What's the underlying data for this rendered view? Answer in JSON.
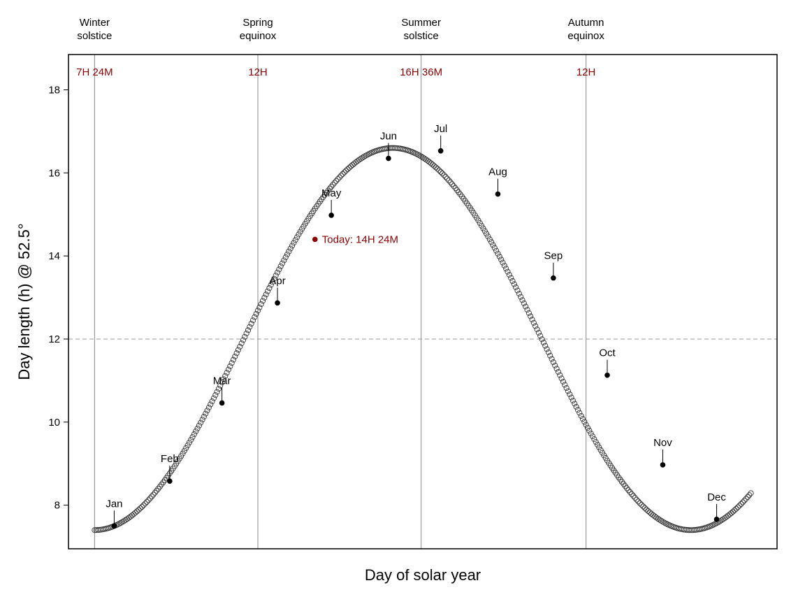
{
  "chart_data": {
    "type": "scatter",
    "title": "",
    "xlabel": "Day of solar year",
    "ylabel": "Day length (h)  @ 52.5°",
    "xlim": [
      -16,
      418
    ],
    "ylim": [
      6.95,
      18.85
    ],
    "yticks": [
      8,
      10,
      12,
      14,
      16,
      18
    ],
    "grid": false,
    "reference_line": {
      "y": 12,
      "style": "dashed"
    },
    "curve": {
      "min_hours": 7.4,
      "max_hours": 16.6,
      "period_days": 365.25,
      "days": 403,
      "marker": "open-circle"
    },
    "season_lines": [
      {
        "day": 0,
        "label": "Winter\nsolstice",
        "hours_label": "7H 24M"
      },
      {
        "day": 100,
        "label": "Spring\nequinox",
        "hours_label": "12H"
      },
      {
        "day": 200,
        "label": "Summer\nsolstice",
        "hours_label": "16H 36M"
      },
      {
        "day": 301,
        "label": "Autumn\nequinox",
        "hours_label": "12H"
      }
    ],
    "months": [
      {
        "label": "Jan",
        "day": 12,
        "hours": 7.5
      },
      {
        "label": "Feb",
        "day": 46,
        "hours": 8.58
      },
      {
        "label": "Mar",
        "day": 78,
        "hours": 10.46
      },
      {
        "label": "Apr",
        "day": 112,
        "hours": 12.87
      },
      {
        "label": "May",
        "day": 145,
        "hours": 14.98
      },
      {
        "label": "Jun",
        "day": 180,
        "hours": 16.35
      },
      {
        "label": "Jul",
        "day": 212,
        "hours": 16.53
      },
      {
        "label": "Aug",
        "day": 247,
        "hours": 15.49
      },
      {
        "label": "Sep",
        "day": 281,
        "hours": 13.47
      },
      {
        "label": "Oct",
        "day": 314,
        "hours": 11.13
      },
      {
        "label": "Nov",
        "day": 348,
        "hours": 8.97
      },
      {
        "label": "Dec",
        "day": 381,
        "hours": 7.66
      }
    ],
    "today": {
      "day": 135,
      "hours": 14.4,
      "label": "Today: 14H 24M"
    }
  }
}
